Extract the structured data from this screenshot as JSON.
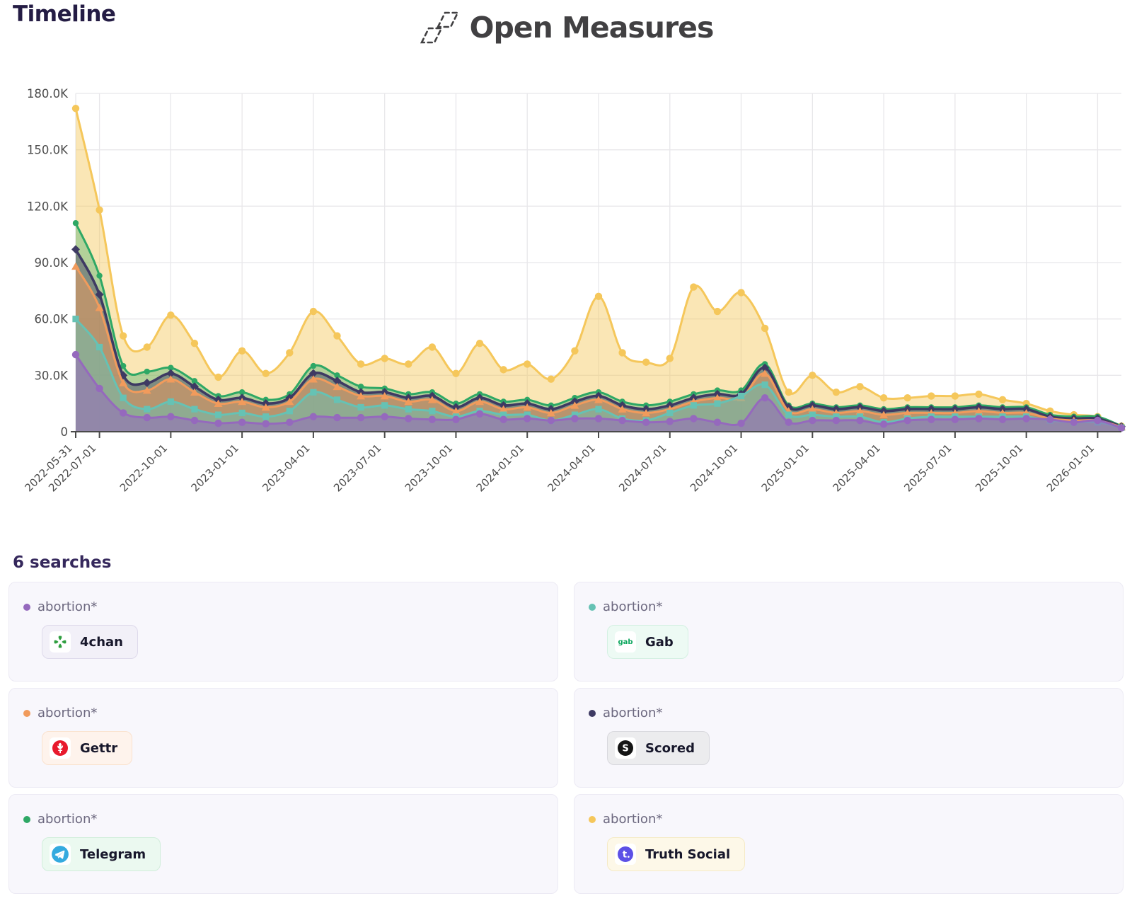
{
  "header": {
    "title": "Timeline",
    "brand": "Open Measures"
  },
  "chart_data": {
    "type": "area",
    "title": "Timeline",
    "xlabel": "",
    "ylabel": "",
    "unit": "thousands of results",
    "ylim_k": [
      0,
      180
    ],
    "y_tick_labels": [
      "0",
      "30.0K",
      "60.0K",
      "90.0K",
      "120.0K",
      "150.0K",
      "180.0K"
    ],
    "y_tick_values_k": [
      0,
      30,
      60,
      90,
      120,
      150,
      180
    ],
    "grid": true,
    "legend_position": "bottom-cards",
    "x": [
      "2022-05-31",
      "2022-07-01",
      "2022-08-01",
      "2022-09-01",
      "2022-10-01",
      "2022-11-01",
      "2022-12-01",
      "2023-01-01",
      "2023-02-01",
      "2023-03-01",
      "2023-04-01",
      "2023-05-01",
      "2023-06-01",
      "2023-07-01",
      "2023-08-01",
      "2023-09-01",
      "2023-10-01",
      "2023-11-01",
      "2023-12-01",
      "2024-01-01",
      "2024-02-01",
      "2024-03-01",
      "2024-04-01",
      "2024-05-01",
      "2024-06-01",
      "2024-07-01",
      "2024-08-01",
      "2024-09-01",
      "2024-10-01",
      "2024-11-01",
      "2024-12-01",
      "2025-01-01",
      "2025-02-01",
      "2025-03-01",
      "2025-04-01",
      "2025-05-01",
      "2025-06-01",
      "2025-07-01",
      "2025-08-01",
      "2025-09-01",
      "2025-10-01",
      "2025-11-01",
      "2025-12-01",
      "2026-01-01",
      "2026-02-01"
    ],
    "x_tick_labels": [
      "2022-05-31",
      "2022-07-01",
      "2022-10-01",
      "2023-01-01",
      "2023-04-01",
      "2023-07-01",
      "2023-10-01",
      "2024-01-01",
      "2024-04-01",
      "2024-07-01",
      "2024-10-01",
      "2025-01-01",
      "2025-04-01",
      "2025-07-01",
      "2025-10-01",
      "2026-01-01"
    ],
    "tick_indices": [
      0,
      1,
      4,
      7,
      10,
      13,
      16,
      19,
      22,
      25,
      28,
      31,
      34,
      37,
      40,
      43
    ],
    "series": [
      {
        "name": "abortion* — Truth Social",
        "platform": "Truth Social",
        "color": "#F5C75B",
        "fill": "rgba(245,199,91,0.45)",
        "marker": "circle",
        "values_k": [
          172,
          118,
          51,
          45,
          62,
          47,
          29,
          43,
          31,
          42,
          64,
          51,
          36,
          39,
          36,
          45,
          31,
          47,
          33,
          36,
          28,
          43,
          72,
          42,
          37,
          39,
          77,
          64,
          74,
          55,
          21,
          30,
          21,
          24,
          18,
          18,
          19,
          19,
          20,
          17,
          15,
          11,
          9,
          8,
          3
        ]
      },
      {
        "name": "abortion* — Telegram",
        "platform": "Telegram",
        "color": "#2EA865",
        "fill": "rgba(46,168,101,0.35)",
        "marker": "circle-sm",
        "values_k": [
          111,
          83,
          35,
          32,
          34,
          27,
          19,
          21,
          17,
          20,
          35,
          30,
          24,
          23,
          20,
          21,
          15,
          20,
          16,
          17,
          14,
          18,
          21,
          16,
          14,
          16,
          20,
          22,
          22,
          36,
          14,
          15,
          13,
          14,
          12,
          13,
          13,
          13,
          14,
          13,
          13,
          9,
          8,
          8,
          3
        ]
      },
      {
        "name": "abortion* — Scored",
        "platform": "Scored",
        "color": "#3E3A63",
        "fill": "rgba(62,58,99,0.45)",
        "marker": "diamond",
        "values_k": [
          97,
          73,
          30,
          26,
          31,
          24,
          17,
          18,
          15,
          18,
          31,
          27,
          21,
          21,
          18,
          19,
          13,
          18,
          14,
          15,
          12,
          16,
          19,
          14,
          12,
          14,
          18,
          20,
          20,
          34,
          13,
          14,
          12,
          13,
          11,
          12,
          12,
          12,
          13,
          12,
          12,
          8,
          7,
          7,
          2.8
        ]
      },
      {
        "name": "abortion* — Gettr",
        "platform": "Gettr",
        "color": "#F19B5C",
        "fill": "rgba(241,155,92,0.5)",
        "marker": "triangle",
        "values_k": [
          88,
          66,
          26,
          22,
          28,
          21,
          15,
          16,
          13,
          16,
          28,
          24,
          19,
          19,
          16,
          17,
          11,
          16,
          12,
          13,
          10,
          14,
          17,
          12,
          10,
          12,
          16,
          18,
          18,
          31,
          11,
          12,
          10,
          11,
          9,
          10,
          10,
          10,
          11,
          10,
          10,
          7,
          6,
          6,
          2.5
        ]
      },
      {
        "name": "abortion* — Gab",
        "platform": "Gab",
        "color": "#66C2B4",
        "fill": "rgba(102,194,180,0.5)",
        "marker": "square",
        "values_k": [
          60,
          45,
          18,
          12,
          16,
          12,
          9,
          10,
          8,
          11,
          21,
          17,
          13,
          14,
          12,
          11,
          8,
          11,
          9,
          9,
          6,
          9,
          12,
          7,
          6,
          10,
          14,
          15,
          19,
          25,
          9,
          9,
          8,
          8,
          5,
          7,
          8,
          8,
          8,
          8,
          8,
          6,
          5,
          5,
          2.2
        ]
      },
      {
        "name": "abortion* — 4chan",
        "platform": "4chan",
        "color": "#9569BD",
        "fill": "rgba(149,105,189,0.55)",
        "marker": "circle",
        "values_k": [
          41,
          23,
          10,
          7.5,
          8,
          6,
          4.5,
          5,
          4.2,
          5,
          8,
          7.5,
          7.5,
          8,
          7,
          6.5,
          6.5,
          9.5,
          6.5,
          7,
          6,
          7,
          7,
          6,
          5,
          5.5,
          7,
          5,
          4.5,
          18,
          5,
          6,
          6,
          6,
          4,
          6,
          6.5,
          6.5,
          7,
          6.5,
          7,
          6.5,
          5,
          6,
          2
        ]
      }
    ]
  },
  "searches": {
    "heading": "6 searches",
    "cards": [
      {
        "query": "abortion*",
        "platform": "4chan",
        "dot_color": "#9569BD"
      },
      {
        "query": "abortion*",
        "platform": "Gab",
        "dot_color": "#66C2B4"
      },
      {
        "query": "abortion*",
        "platform": "Gettr",
        "dot_color": "#F19B5C"
      },
      {
        "query": "abortion*",
        "platform": "Scored",
        "dot_color": "#3E3A63"
      },
      {
        "query": "abortion*",
        "platform": "Telegram",
        "dot_color": "#2EA865"
      },
      {
        "query": "abortion*",
        "platform": "Truth Social",
        "dot_color": "#F5C75B"
      }
    ]
  }
}
